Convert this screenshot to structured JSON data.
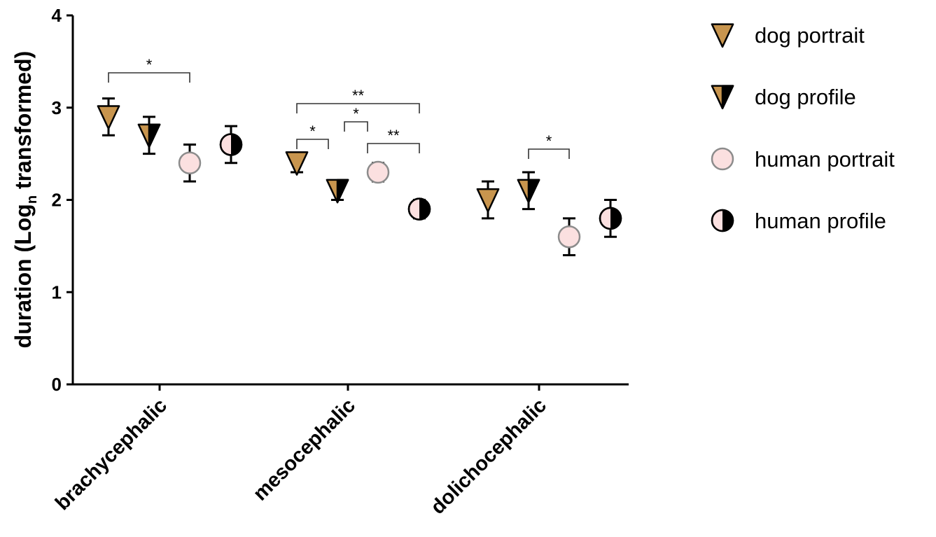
{
  "chart_data": {
    "type": "scatter",
    "title": "",
    "ylabel_main": "duration (Log",
    "ylabel_sub": "n",
    "ylabel_tail": " transformed)",
    "ylim": [
      0,
      4
    ],
    "yticks": [
      "0",
      "1",
      "2",
      "3",
      "4"
    ],
    "categories": [
      "brachycephalic",
      "mesocephalic",
      "dolichocephalic"
    ],
    "legend_position": "right",
    "series": [
      {
        "name": "dog portrait",
        "marker": "triangle-down",
        "fill": "#c8954e",
        "values": [
          2.9,
          2.4,
          2.0
        ],
        "err_low": [
          2.7,
          2.3,
          1.8
        ],
        "err_high": [
          3.1,
          2.5,
          2.2
        ]
      },
      {
        "name": "dog profile",
        "marker": "triangle-down-half",
        "fill": "#c8954e",
        "values": [
          2.7,
          2.1,
          2.1
        ],
        "err_low": [
          2.5,
          2.0,
          1.9
        ],
        "err_high": [
          2.9,
          2.2,
          2.3
        ]
      },
      {
        "name": "human portrait",
        "marker": "circle",
        "fill": "#fbe0e0",
        "values": [
          2.4,
          2.3,
          1.6
        ],
        "err_low": [
          2.2,
          2.2,
          1.4
        ],
        "err_high": [
          2.6,
          2.4,
          1.8
        ]
      },
      {
        "name": "human profile",
        "marker": "circle-half",
        "fill": "#fbe0e0",
        "values": [
          2.6,
          1.9,
          1.8
        ],
        "err_low": [
          2.4,
          1.8,
          1.6
        ],
        "err_high": [
          2.8,
          2.0,
          2.0
        ]
      }
    ],
    "significance": [
      {
        "category": 0,
        "from_series": 0,
        "to_series": 2,
        "label": "*"
      },
      {
        "category": 1,
        "from_series": 0,
        "to_series": 3,
        "label": "**"
      },
      {
        "category": 1,
        "from_series": 0,
        "to_series": 1,
        "label": "*"
      },
      {
        "category": 1,
        "from_series": 1,
        "to_series": 2,
        "label": "*"
      },
      {
        "category": 1,
        "from_series": 2,
        "to_series": 3,
        "label": "**"
      },
      {
        "category": 2,
        "from_series": 1,
        "to_series": 2,
        "label": "*"
      }
    ]
  },
  "colors": {
    "dog_fill": "#c8954e",
    "human_fill": "#fbe0e0",
    "human_outline": "#8c8c8c",
    "ink": "#000000"
  }
}
